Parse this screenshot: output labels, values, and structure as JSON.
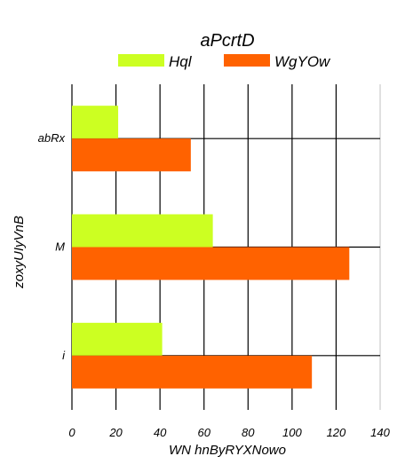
{
  "chart_data": {
    "type": "bar",
    "orientation": "horizontal",
    "title": "aPcrtD",
    "xlabel": "WN hnByRYXNowo",
    "ylabel": "zoxyUIyVnB",
    "categories": [
      "abRx",
      "M",
      "i"
    ],
    "series": [
      {
        "name": "Hql",
        "color": "#ccff22",
        "values": [
          21,
          64,
          41
        ]
      },
      {
        "name": "WgYOw",
        "color": "#ff6200",
        "values": [
          54,
          126,
          109
        ]
      }
    ],
    "xlim": [
      0,
      140
    ],
    "xticks": [
      0,
      20,
      40,
      60,
      80,
      100,
      120,
      140
    ],
    "grid": true,
    "legend": "top-center"
  }
}
